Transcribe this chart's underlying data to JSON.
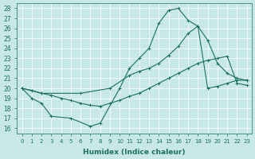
{
  "xlabel": "Humidex (Indice chaleur)",
  "bg_color": "#c8e8e8",
  "line_color": "#1a7060",
  "xlim": [
    -0.5,
    23.5
  ],
  "ylim": [
    15.5,
    28.5
  ],
  "xticks": [
    0,
    1,
    2,
    3,
    4,
    5,
    6,
    7,
    8,
    9,
    10,
    11,
    12,
    13,
    14,
    15,
    16,
    17,
    18,
    19,
    20,
    21,
    22,
    23
  ],
  "yticks": [
    16,
    17,
    18,
    19,
    20,
    21,
    22,
    23,
    24,
    25,
    26,
    27,
    28
  ],
  "line1_x": [
    0,
    1,
    2,
    3,
    5,
    7,
    8,
    10,
    11,
    12,
    13,
    14,
    15,
    16,
    17,
    18,
    19,
    20,
    21,
    22,
    23
  ],
  "line1_y": [
    20.0,
    19.0,
    18.5,
    17.2,
    17.0,
    16.2,
    16.5,
    20.0,
    22.0,
    23.0,
    24.0,
    26.5,
    27.8,
    28.0,
    26.8,
    26.2,
    24.8,
    22.5,
    21.5,
    21.0,
    20.8
  ],
  "line2_x": [
    0,
    2,
    6,
    9,
    11,
    12,
    13,
    14,
    15,
    16,
    17,
    18,
    19,
    20,
    21,
    22,
    23
  ],
  "line2_y": [
    20.0,
    19.5,
    19.5,
    20.0,
    21.3,
    21.7,
    22.0,
    22.5,
    23.3,
    24.2,
    25.5,
    26.2,
    20.0,
    20.2,
    20.5,
    20.8,
    20.8
  ],
  "line3_x": [
    0,
    1,
    2,
    3,
    4,
    5,
    6,
    7,
    8,
    9,
    10,
    11,
    12,
    13,
    14,
    15,
    16,
    17,
    18,
    19,
    20,
    21,
    22,
    23
  ],
  "line3_y": [
    20.0,
    19.8,
    19.5,
    19.3,
    19.0,
    18.8,
    18.5,
    18.3,
    18.2,
    18.5,
    18.8,
    19.2,
    19.5,
    20.0,
    20.5,
    21.0,
    21.5,
    22.0,
    22.5,
    22.8,
    23.0,
    23.2,
    20.5,
    20.3
  ]
}
